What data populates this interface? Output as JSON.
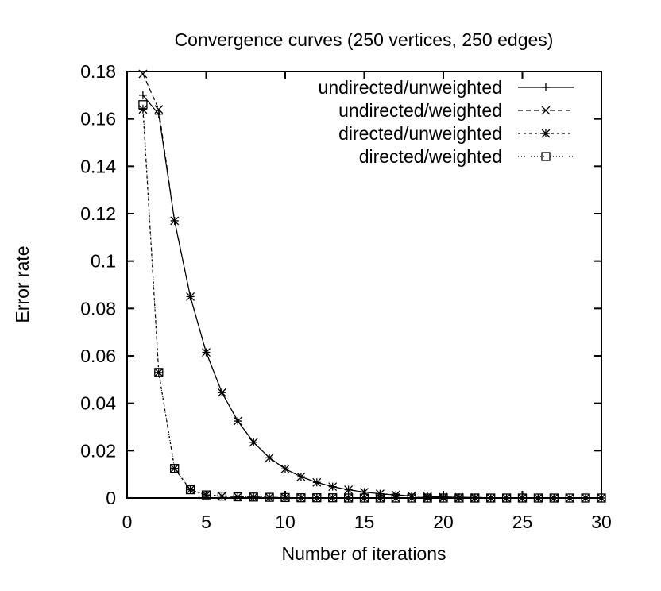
{
  "chart_data": {
    "type": "line",
    "title": "Convergence curves (250 vertices, 250 edges)",
    "xlabel": "Number of iterations",
    "ylabel": "Error rate",
    "xlim": [
      0,
      30
    ],
    "ylim": [
      0,
      0.18
    ],
    "xticks": [
      "0",
      "5",
      "10",
      "15",
      "20",
      "25",
      "30"
    ],
    "yticks": [
      "0",
      "0.02",
      "0.04",
      "0.06",
      "0.08",
      "0.1",
      "0.12",
      "0.14",
      "0.16",
      "0.18"
    ],
    "grid": false,
    "legend_position": "top-right",
    "x": [
      1,
      2,
      3,
      4,
      5,
      6,
      7,
      8,
      9,
      10,
      11,
      12,
      13,
      14,
      15,
      16,
      17,
      18,
      19,
      20,
      21,
      22,
      23,
      24,
      25,
      26,
      27,
      28,
      29,
      30
    ],
    "series": [
      {
        "name": "undirected/unweighted",
        "marker": "plus",
        "dash": "solid",
        "values": [
          0.17,
          0.162,
          0.117,
          0.085,
          0.0615,
          0.0445,
          0.0325,
          0.0235,
          0.017,
          0.0123,
          0.009,
          0.0066,
          0.0048,
          0.0035,
          0.0025,
          0.0018,
          0.0013,
          0.0009,
          0.0006,
          0.0004,
          0.0003,
          0.0002,
          0.0001,
          0,
          0,
          0,
          0,
          0,
          0,
          0
        ]
      },
      {
        "name": "undirected/weighted",
        "marker": "cross",
        "dash": "dashed",
        "values": [
          0.179,
          0.164,
          0.117,
          0.085,
          0.0615,
          0.0445,
          0.0325,
          0.0235,
          0.017,
          0.0123,
          0.009,
          0.0066,
          0.0048,
          0.0035,
          0.0025,
          0.0018,
          0.0013,
          0.0009,
          0.0006,
          0.0004,
          0.0003,
          0.0002,
          0.0001,
          0,
          0,
          0,
          0,
          0,
          0,
          0
        ]
      },
      {
        "name": "directed/unweighted",
        "marker": "star",
        "dash": "short-dashed",
        "values": [
          0.164,
          0.053,
          0.0125,
          0.0035,
          0.0013,
          0.0008,
          0.0005,
          0.0004,
          0.0003,
          0.0002,
          0.0001,
          0.0001,
          0.0001,
          0,
          0,
          0,
          0,
          0,
          0,
          0,
          0,
          0,
          0,
          0,
          0,
          0,
          0,
          0,
          0,
          0
        ]
      },
      {
        "name": "directed/weighted",
        "marker": "square",
        "dash": "dotted",
        "values": [
          0.166,
          0.053,
          0.0125,
          0.0035,
          0.0013,
          0.0008,
          0.0005,
          0.0004,
          0.0003,
          0.0002,
          0.0001,
          0.0001,
          0.0001,
          0,
          0,
          0,
          0,
          0,
          0,
          0,
          0,
          0,
          0,
          0,
          0,
          0,
          0,
          0,
          0,
          0
        ]
      }
    ]
  }
}
